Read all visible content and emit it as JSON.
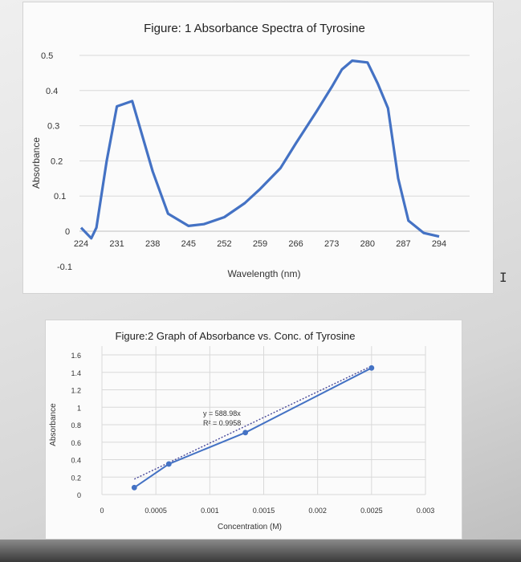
{
  "chart_data": [
    {
      "type": "line",
      "title": "Figure: 1 Absorbance Spectra of Tyrosine",
      "xlabel": "Wavelength (nm)",
      "ylabel": "Absorbance",
      "x_ticks": [
        "224",
        "231",
        "238",
        "245",
        "252",
        "259",
        "266",
        "273",
        "280",
        "287",
        "294"
      ],
      "y_ticks": [
        "0.5",
        "0.4",
        "0.3",
        "0.2",
        "0.1",
        "0",
        "-0.1"
      ],
      "ylim": [
        -0.1,
        0.5
      ],
      "xlim": [
        224,
        294
      ],
      "grid": "horizontal",
      "series": [
        {
          "x": [
            224,
            226,
            227,
            229,
            231,
            234,
            238,
            241,
            245,
            248,
            252,
            256,
            259,
            263,
            266,
            270,
            273,
            275,
            277,
            280,
            282,
            284,
            286,
            288,
            291,
            294
          ],
          "y": [
            0.01,
            -0.02,
            0.01,
            0.2,
            0.355,
            0.37,
            0.17,
            0.05,
            0.015,
            0.02,
            0.04,
            0.08,
            0.12,
            0.18,
            0.25,
            0.34,
            0.41,
            0.46,
            0.485,
            0.48,
            0.42,
            0.35,
            0.15,
            0.03,
            -0.005,
            -0.015
          ]
        }
      ]
    },
    {
      "type": "scatter",
      "title": "Figure:2 Graph of Absorbance vs. Conc. of Tyrosine",
      "xlabel": "Concentration (M)",
      "ylabel": "Absorbance",
      "x_ticks": [
        "0",
        "0.0005",
        "0.001",
        "0.0015",
        "0.002",
        "0.0025",
        "0.003"
      ],
      "y_ticks": [
        "1.6",
        "1.4",
        "1.2",
        "1",
        "0.8",
        "0.6",
        "0.4",
        "0.2",
        "0"
      ],
      "xlim": [
        0,
        0.003
      ],
      "ylim": [
        0,
        1.7
      ],
      "grid": "both",
      "points": [
        {
          "x": 0.0003,
          "y": 0.08
        },
        {
          "x": 0.00062,
          "y": 0.35
        },
        {
          "x": 0.00133,
          "y": 0.71
        },
        {
          "x": 0.0025,
          "y": 1.45
        }
      ],
      "trendline": {
        "x": [
          0.0003,
          0.0025
        ],
        "y": [
          0.177,
          1.472
        ]
      },
      "equation": "y = 588.98x",
      "r_squared": "R² = 0.9958"
    }
  ]
}
